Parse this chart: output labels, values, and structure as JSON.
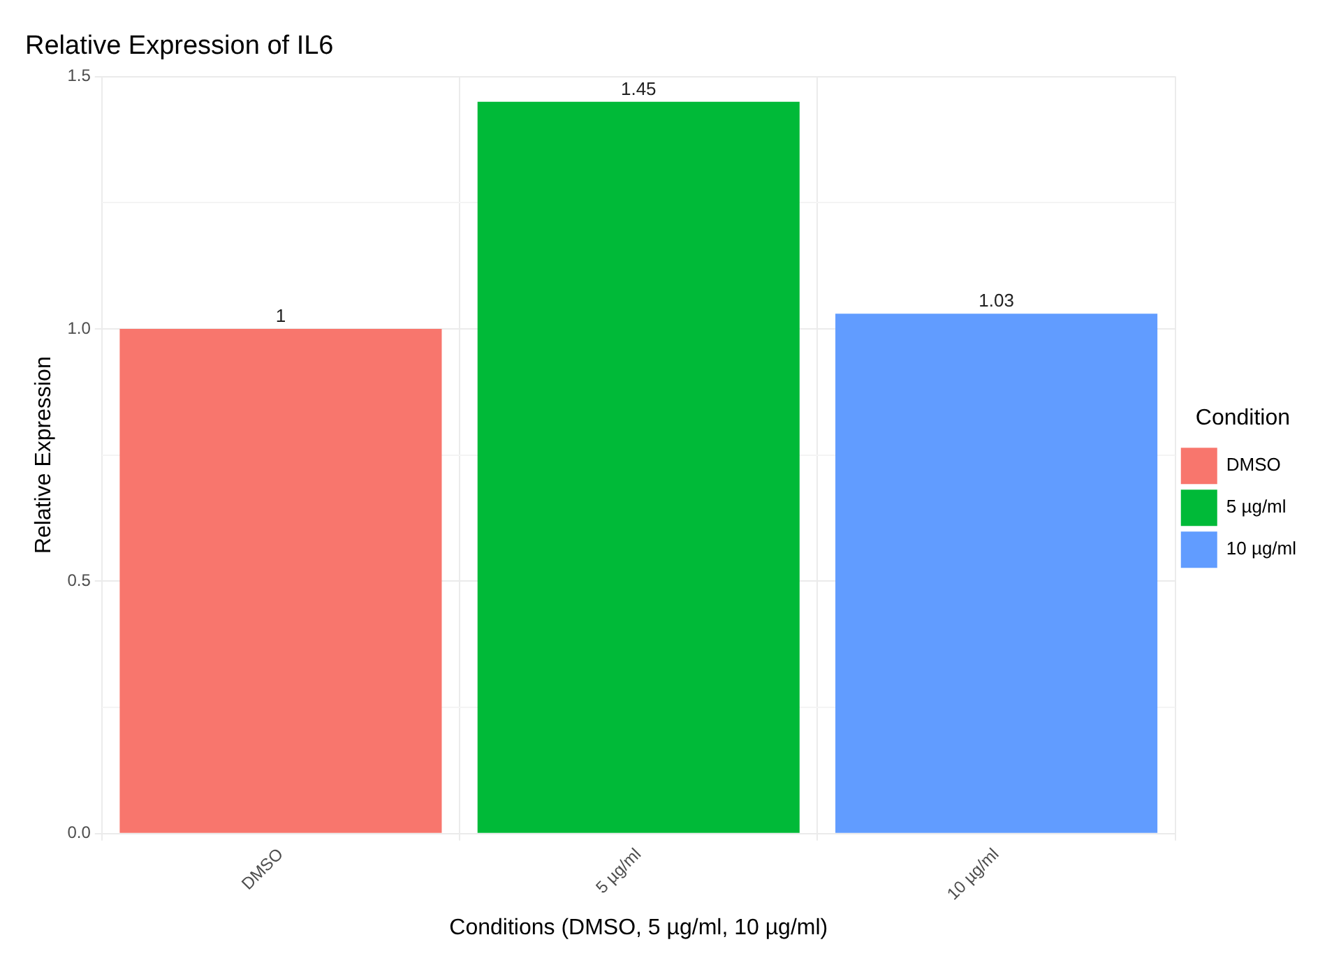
{
  "chart_data": {
    "type": "bar",
    "title": "Relative Expression of IL6",
    "xlabel": "Conditions (DMSO, 5 µg/ml, 10 µg/ml)",
    "ylabel": "Relative Expression",
    "legend_title": "Condition",
    "categories": [
      "DMSO",
      "5 µg/ml",
      "10 µg/ml"
    ],
    "series": [
      {
        "name": "DMSO",
        "color": "#f8766d",
        "values": [
          1,
          null,
          null
        ]
      },
      {
        "name": "5 µg/ml",
        "color": "#00ba38",
        "values": [
          null,
          1.45,
          null
        ]
      },
      {
        "name": "10 µg/ml",
        "color": "#619cff",
        "values": [
          null,
          null,
          1.03
        ]
      }
    ],
    "ylim": [
      0,
      1.5
    ],
    "yticks": [
      {
        "value": 0,
        "label": "0.0"
      },
      {
        "value": 0.25,
        "label": null
      },
      {
        "value": 0.5,
        "label": "0.5"
      },
      {
        "value": 0.75,
        "label": null
      },
      {
        "value": 1,
        "label": "1.0"
      },
      {
        "value": 1.25,
        "label": null
      },
      {
        "value": 1.5,
        "label": "1.5"
      }
    ],
    "grid": true,
    "legend": "right",
    "data_labels": true
  }
}
